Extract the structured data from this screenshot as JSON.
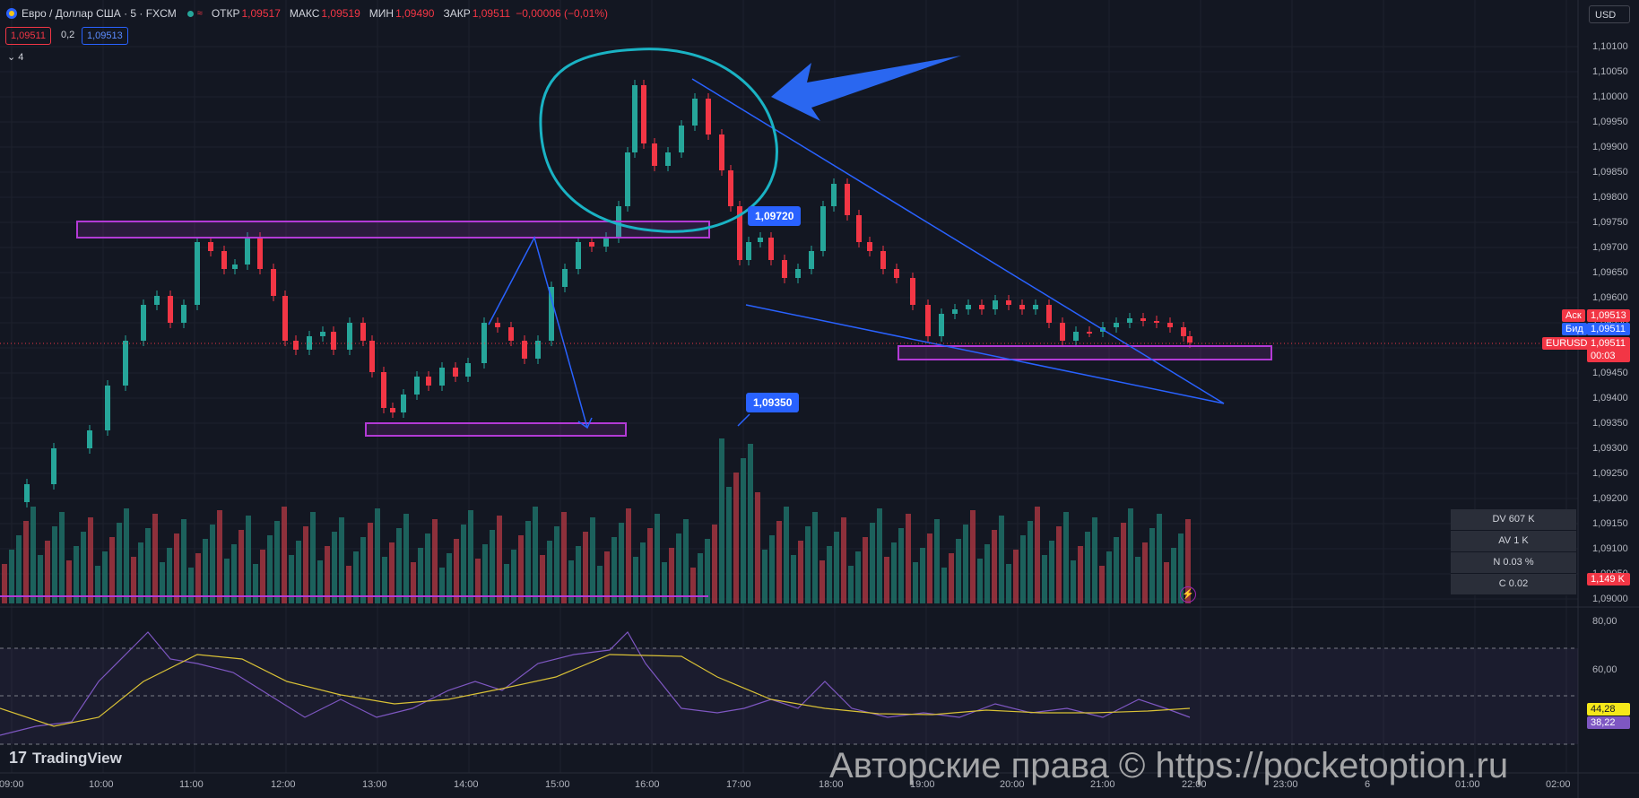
{
  "header": {
    "symbol": "Евро / Доллар США · 5 · FXCM",
    "ohlc": [
      {
        "label": "ОТКР",
        "value": "1,09517"
      },
      {
        "label": "МАКС",
        "value": "1,09519"
      },
      {
        "label": "МИН",
        "value": "1,09490"
      },
      {
        "label": "ЗАКР",
        "value": "1,09511"
      }
    ],
    "change": "−0,00006 (−0,01%)",
    "sell_price": "1,09511",
    "spread": "0,2",
    "buy_price": "1,09513",
    "indicators_count": "4",
    "currency": "USD"
  },
  "colors": {
    "up": "#26a69a",
    "down": "#f23645",
    "accent": "#2962ff",
    "annotation_cyan": "#1ab3c4",
    "zone_purple": "#b33ad6"
  },
  "price_axis": {
    "ticks": [
      "1,10100",
      "1,10050",
      "1,10000",
      "1,09950",
      "1,09900",
      "1,09850",
      "1,09800",
      "1,09750",
      "1,09700",
      "1,09650",
      "1,09600",
      "1,09550",
      "1,09500",
      "1,09450",
      "1,09400",
      "1,09350",
      "1,09300",
      "1,09250",
      "1,09200",
      "1,09150",
      "1,09100",
      "1,09050",
      "1,09000"
    ],
    "ask_label": "Аск",
    "ask_value": "1,09513",
    "bid_label": "Бид",
    "bid_value": "1,09511",
    "symbol_tag": "EURUSD",
    "last_value": "1,09511",
    "countdown": "00:03",
    "volume_value": "1,149 K"
  },
  "oscillator_axis": {
    "ticks": [
      "80,00",
      "60,00"
    ],
    "value1": "44,28",
    "value2": "38,22"
  },
  "time_axis": [
    "09:00",
    "10:00",
    "11:00",
    "12:00",
    "13:00",
    "14:00",
    "15:00",
    "16:00",
    "17:00",
    "18:00",
    "19:00",
    "20:00",
    "21:00",
    "22:00",
    "23:00",
    "6",
    "01:00",
    "02:00"
  ],
  "callouts": {
    "upper": "1,09720",
    "lower": "1,09350"
  },
  "stats_box": [
    "DV 607 K",
    "AV 1 K",
    "N 0.03 %",
    "C  0.02"
  ],
  "branding": {
    "logo": "TradingView",
    "watermark": "Авторские права © https://pocketoption.ru"
  }
}
